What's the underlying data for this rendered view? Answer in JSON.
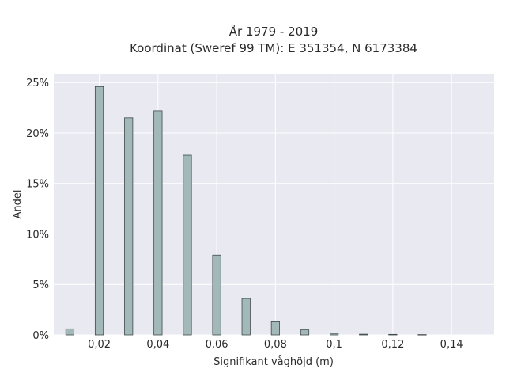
{
  "chart_data": {
    "type": "bar",
    "title_lines": [
      "År 1979 - 2019",
      "Koordinat (Sweref 99 TM): E 351354, N 6173384"
    ],
    "xlabel": "Signifikant våghöjd (m)",
    "ylabel": "Andel",
    "x_ticks": [
      0.02,
      0.04,
      0.06,
      0.08,
      0.1,
      0.12,
      0.14
    ],
    "x_tick_labels": [
      "0,02",
      "0,04",
      "0,06",
      "0,08",
      "0,1",
      "0,12",
      "0,14"
    ],
    "y_ticks": [
      0,
      5,
      10,
      15,
      20,
      25
    ],
    "y_tick_labels": [
      "0%",
      "5%",
      "10%",
      "15%",
      "20%",
      "25%"
    ],
    "xlim": [
      0.0045,
      0.1545
    ],
    "ylim": [
      0,
      25.8
    ],
    "bar_width": 0.0028,
    "x": [
      0.01,
      0.02,
      0.03,
      0.04,
      0.05,
      0.06,
      0.07,
      0.08,
      0.09,
      0.1,
      0.11,
      0.12,
      0.13,
      0.14
    ],
    "values": [
      0.6,
      24.6,
      21.5,
      22.2,
      17.8,
      7.9,
      3.6,
      1.3,
      0.5,
      0.15,
      0.07,
      0.05,
      0.03,
      0.0
    ],
    "grid": true,
    "legend": "none",
    "colors": {
      "plot_background": "#e9e9f1",
      "grid": "#ffffff",
      "bar_fill": "#a3b9b9",
      "bar_stroke": "#3f4a4a"
    }
  }
}
